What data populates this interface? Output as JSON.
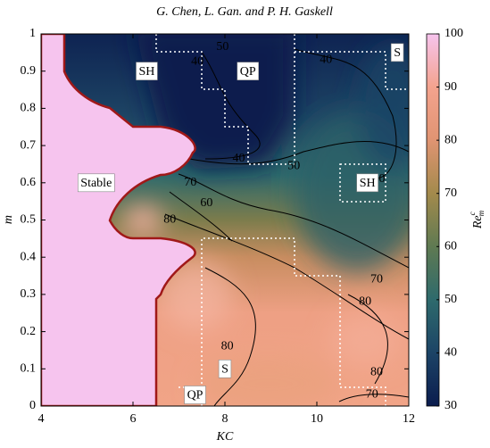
{
  "chart_data": {
    "type": "contour",
    "title": "G. Chen, L. Gan. and P. H. Gaskell",
    "x_label": "KC",
    "y_label": "m",
    "xlim": [
      4,
      12
    ],
    "xticks": [
      4,
      6,
      8,
      10,
      12
    ],
    "ylim": [
      0,
      1
    ],
    "yticks": [
      0,
      0.1,
      0.2,
      0.3,
      0.4,
      0.5,
      0.6,
      0.7,
      0.8,
      0.9,
      1
    ],
    "colorbar": {
      "label": {
        "base": "Re",
        "sup": "c",
        "sub": "m"
      },
      "lim": [
        30,
        100
      ],
      "ticks": [
        30,
        40,
        50,
        60,
        70,
        80,
        90,
        100
      ],
      "colors": [
        "#0b1c4e",
        "#1c4466",
        "#2e6a6c",
        "#5f7a52",
        "#a38a4c",
        "#e09472",
        "#f4a38e",
        "#f6c4ee"
      ]
    },
    "contour_labels": [
      {
        "value": 50,
        "x": 7.95,
        "y": 0.965
      },
      {
        "value": 40,
        "x": 7.4,
        "y": 0.925
      },
      {
        "value": 40,
        "x": 10.2,
        "y": 0.93
      },
      {
        "value": 40,
        "x": 8.3,
        "y": 0.665
      },
      {
        "value": 50,
        "x": 9.5,
        "y": 0.645
      },
      {
        "value": 40,
        "x": 11.35,
        "y": 0.61
      },
      {
        "value": 70,
        "x": 7.25,
        "y": 0.6
      },
      {
        "value": 60,
        "x": 7.6,
        "y": 0.545
      },
      {
        "value": 80,
        "x": 6.8,
        "y": 0.5
      },
      {
        "value": 70,
        "x": 11.3,
        "y": 0.34
      },
      {
        "value": 80,
        "x": 11.05,
        "y": 0.28
      },
      {
        "value": 80,
        "x": 8.05,
        "y": 0.16
      },
      {
        "value": 80,
        "x": 11.3,
        "y": 0.09
      },
      {
        "value": 70,
        "x": 11.2,
        "y": 0.03
      }
    ],
    "regions": [
      {
        "label": "SH",
        "color": "#7a4fa0",
        "x": 6.3,
        "y": 0.9
      },
      {
        "label": "QP",
        "color": "#2a8a2a",
        "x": 8.5,
        "y": 0.9
      },
      {
        "label": "S",
        "color": "#c0202a",
        "x": 11.75,
        "y": 0.95
      },
      {
        "label": "Stable",
        "color": "#2a7a8a",
        "x": 5.2,
        "y": 0.6
      },
      {
        "label": "SH",
        "color": "#7a4fa0",
        "x": 11.1,
        "y": 0.6
      },
      {
        "label": "S",
        "color": "#c0202a",
        "x": 8.0,
        "y": 0.1
      },
      {
        "label": "QP",
        "color": "#2a8a2a",
        "x": 7.35,
        "y": 0.03
      }
    ]
  }
}
